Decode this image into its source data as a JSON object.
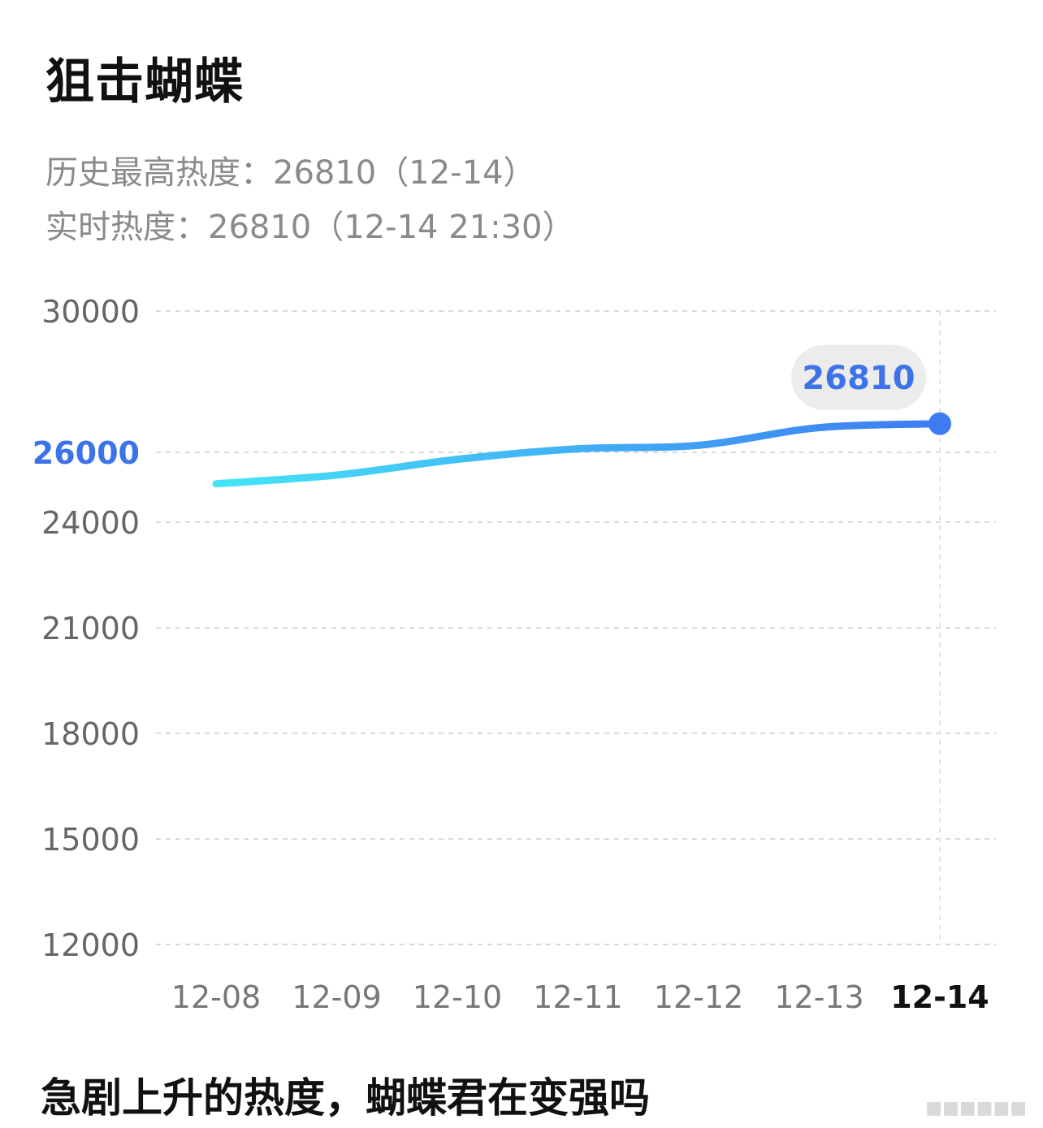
{
  "title": "狙击蝴蝶",
  "meta": {
    "peak_label": "历史最高热度：",
    "peak_value": "26810",
    "peak_date": "（12-14）",
    "realtime_label": "实时热度：",
    "realtime_value": "26810",
    "realtime_time": "（12-14 21:30）"
  },
  "caption": "急剧上升的热度，蝴蝶君在变强吗",
  "colors": {
    "line_start": "#45E4F7",
    "line_end": "#3D7BF2",
    "accent_blue": "#3D73E8",
    "grid": "#d9d9d9",
    "tooltip_bg": "#ececec"
  },
  "chart_data": {
    "type": "line",
    "title": "",
    "xlabel": "",
    "ylabel": "",
    "categories": [
      "12-08",
      "12-09",
      "12-10",
      "12-11",
      "12-12",
      "12-13",
      "12-14"
    ],
    "y_ticks": [
      "12000",
      "15000",
      "18000",
      "21000",
      "24000",
      "26000",
      "30000"
    ],
    "y_ticks_values": [
      12000,
      15000,
      18000,
      21000,
      24000,
      26000,
      30000
    ],
    "highlighted_tick": "26000",
    "highlighted_category": "12-14",
    "series": [
      {
        "values": [
          25100,
          25350,
          25800,
          26100,
          26200,
          26700,
          26810
        ]
      }
    ],
    "tooltip": {
      "category": "12-14",
      "value": "26810"
    },
    "grid": true
  }
}
